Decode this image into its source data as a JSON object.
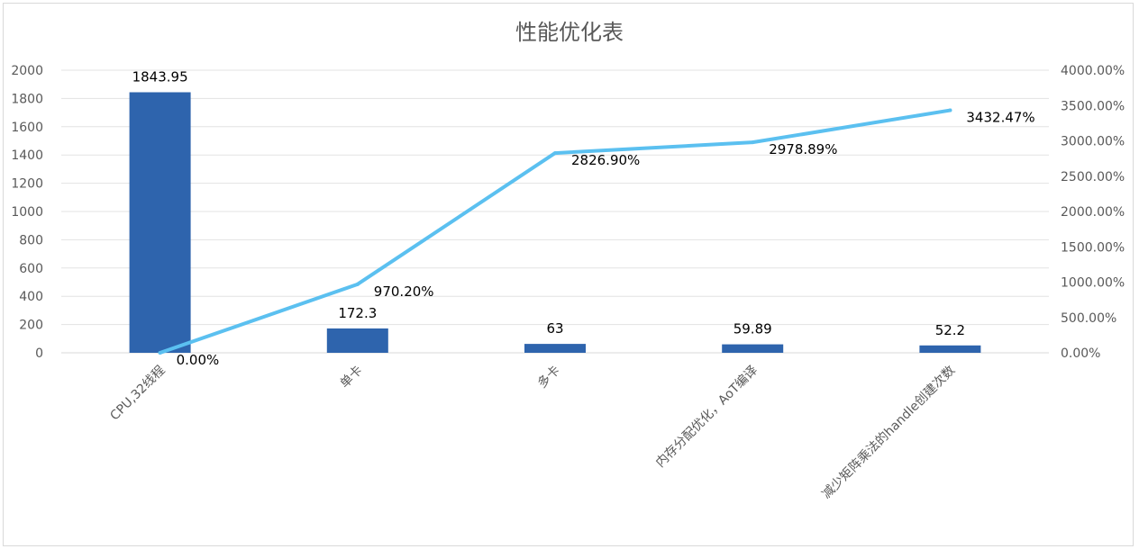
{
  "chart_data": {
    "type": "bar+line",
    "title": "性能优化表",
    "categories": [
      "CPU,32线程",
      "单卡",
      "多卡",
      "内存分配优化，AoT编译",
      "减少矩阵乘法的handle创建次数"
    ],
    "series": [
      {
        "type": "bar",
        "axis": "left",
        "values": [
          1843.95,
          172.3,
          63,
          59.89,
          52.2
        ],
        "labels": [
          "1843.95",
          "172.3",
          "63",
          "59.89",
          "52.2"
        ],
        "color": "#2e64ad"
      },
      {
        "type": "line",
        "axis": "right",
        "values": [
          0.0,
          970.2,
          2826.9,
          2978.89,
          3432.47
        ],
        "labels": [
          "0.00%",
          "970.20%",
          "2826.90%",
          "2978.89%",
          "3432.47%"
        ],
        "color": "#5bc0f0"
      }
    ],
    "y_left": {
      "ylim": [
        0,
        2000
      ],
      "ticks": [
        "0",
        "200",
        "400",
        "600",
        "800",
        "1000",
        "1200",
        "1400",
        "1600",
        "1800",
        "2000"
      ]
    },
    "y_right": {
      "ylim": [
        0,
        4000
      ],
      "ticks": [
        "0.00%",
        "500.00%",
        "1000.00%",
        "1500.00%",
        "2000.00%",
        "2500.00%",
        "3000.00%",
        "3500.00%",
        "4000.00%"
      ]
    },
    "grid": true,
    "legend": "none"
  }
}
